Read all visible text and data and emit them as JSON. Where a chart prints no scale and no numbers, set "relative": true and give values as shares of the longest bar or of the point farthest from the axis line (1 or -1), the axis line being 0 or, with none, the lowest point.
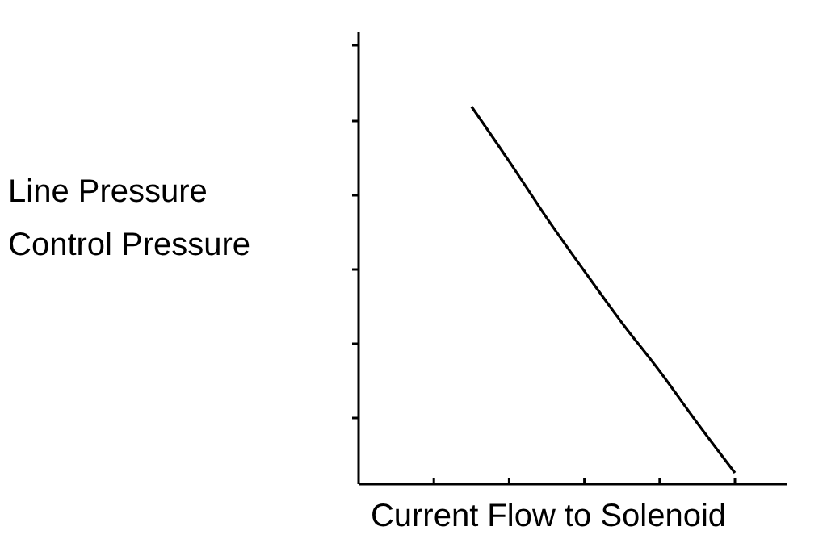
{
  "chart_data": {
    "type": "line",
    "relative": true,
    "xlabel": "Current Flow to Solenoid",
    "ylabel": "Line Pressure\nControl Pressure",
    "categories": [
      null,
      null,
      null,
      null,
      null,
      null,
      null,
      null,
      null,
      null,
      null,
      null
    ],
    "series": [
      {
        "color": "#000000",
        "values": [
          null,
          null,
          null,
          1,
          0.855,
          0.705,
          0.564,
          0.427,
          0.299,
          0.162,
          0.03,
          null
        ]
      }
    ],
    "marker": "none",
    "line_style": "solid",
    "grid": false
  }
}
